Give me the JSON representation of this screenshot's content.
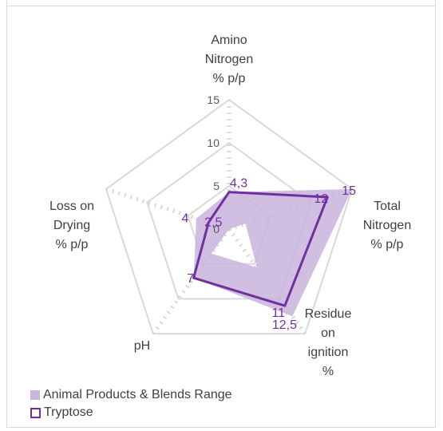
{
  "chart_data": {
    "type": "radar",
    "axes": [
      {
        "label": [
          "Amino",
          "Nitrogen",
          "% p/p"
        ],
        "max": 15
      },
      {
        "label": [
          "Total",
          "Nitrogen",
          "% p/p"
        ],
        "max": 15
      },
      {
        "label": [
          "Residue",
          "on",
          "ignition",
          "%"
        ],
        "max": 15
      },
      {
        "label": [
          "pH"
        ],
        "max": 15
      },
      {
        "label": [
          "Loss on",
          "Drying",
          "% p/p"
        ],
        "max": 15
      }
    ],
    "ticks": [
      "0",
      "5",
      "10",
      "15"
    ],
    "series": [
      {
        "name": "Animal Products & Blends Range",
        "style": "filled",
        "color": "#c9b4dd",
        "outer": [
          4.3,
          15,
          12.5,
          7,
          4
        ],
        "inner": [
          0,
          2,
          5.5,
          3.5,
          0
        ]
      },
      {
        "name": "Tryptose",
        "style": "line",
        "color": "#7030a0",
        "values": [
          4.3,
          12,
          11,
          7,
          2.5
        ]
      }
    ],
    "data_labels": [
      {
        "axis": 0,
        "value": 4.3,
        "text": "4,3"
      },
      {
        "axis": 1,
        "value": 12,
        "text": "12"
      },
      {
        "axis": 1,
        "value": 15,
        "text": "15"
      },
      {
        "axis": 2,
        "value": 11,
        "text": "11"
      },
      {
        "axis": 2,
        "value": 12.5,
        "text": "12,5"
      },
      {
        "axis": 3,
        "value": 7,
        "text": "7"
      },
      {
        "axis": 4,
        "value": 2.5,
        "text": "2,5"
      },
      {
        "axis": 4,
        "value": 4,
        "text": "4"
      }
    ],
    "grid": true,
    "legend_position": "bottom-left"
  },
  "legend": {
    "fill_label": "Animal Products & Blends Range",
    "line_label": "Tryptose"
  }
}
